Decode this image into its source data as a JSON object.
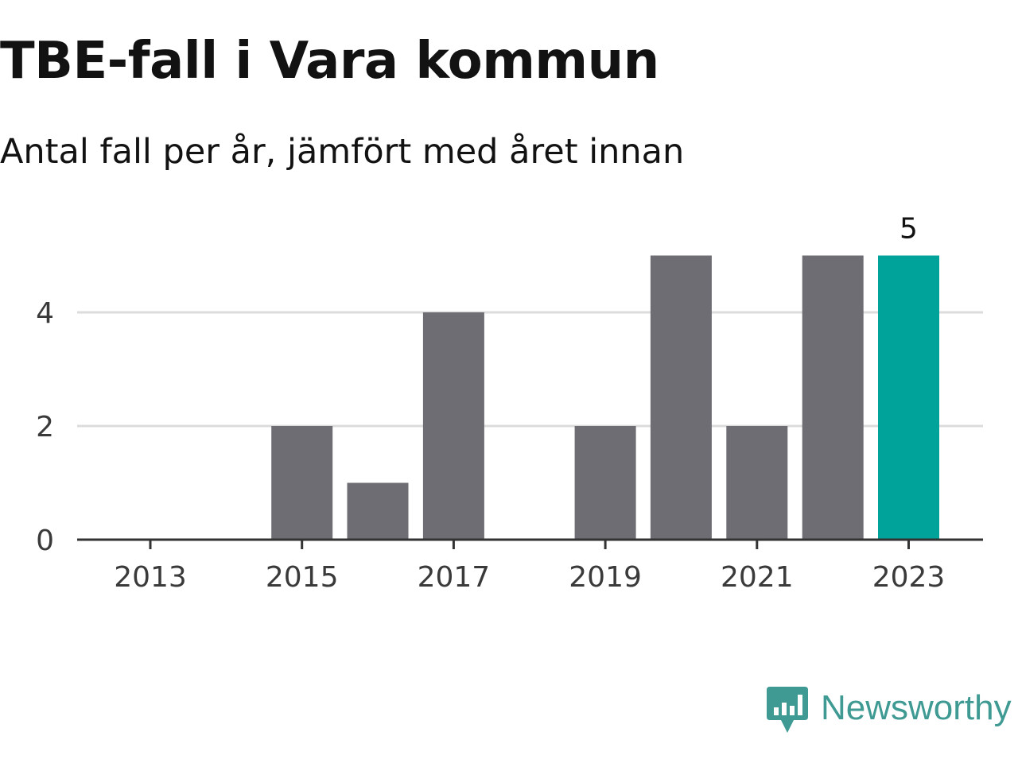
{
  "header": {
    "title": "TBE-fall i Vara kommun",
    "subtitle": "Antal fall per år, jämfört med året innan"
  },
  "chart_data": {
    "type": "bar",
    "title": "TBE-fall i Vara kommun",
    "subtitle": "Antal fall per år, jämfört med året innan",
    "xlabel": "",
    "ylabel": "",
    "categories": [
      "2013",
      "2014",
      "2015",
      "2016",
      "2017",
      "2018",
      "2019",
      "2020",
      "2021",
      "2022",
      "2023"
    ],
    "values": [
      0,
      0,
      2,
      1,
      4,
      0,
      2,
      5,
      2,
      5,
      5
    ],
    "ylim": [
      0,
      5
    ],
    "y_ticks": [
      0,
      2,
      4
    ],
    "x_tick_labels": [
      "2013",
      "2015",
      "2017",
      "2019",
      "2021",
      "2023"
    ],
    "grid": true,
    "highlight_category": "2023",
    "data_labels": [
      {
        "category": "2023",
        "text": "5"
      }
    ],
    "colors": {
      "bar": "#6e6d73",
      "highlight": "#00a39a",
      "grid": "#dcdcdc",
      "axis": "#333333"
    }
  },
  "branding": {
    "logo_text": "Newsworthy",
    "logo_icon": "bar-chart-speech-bubble-icon",
    "color": "#3f9a93"
  }
}
